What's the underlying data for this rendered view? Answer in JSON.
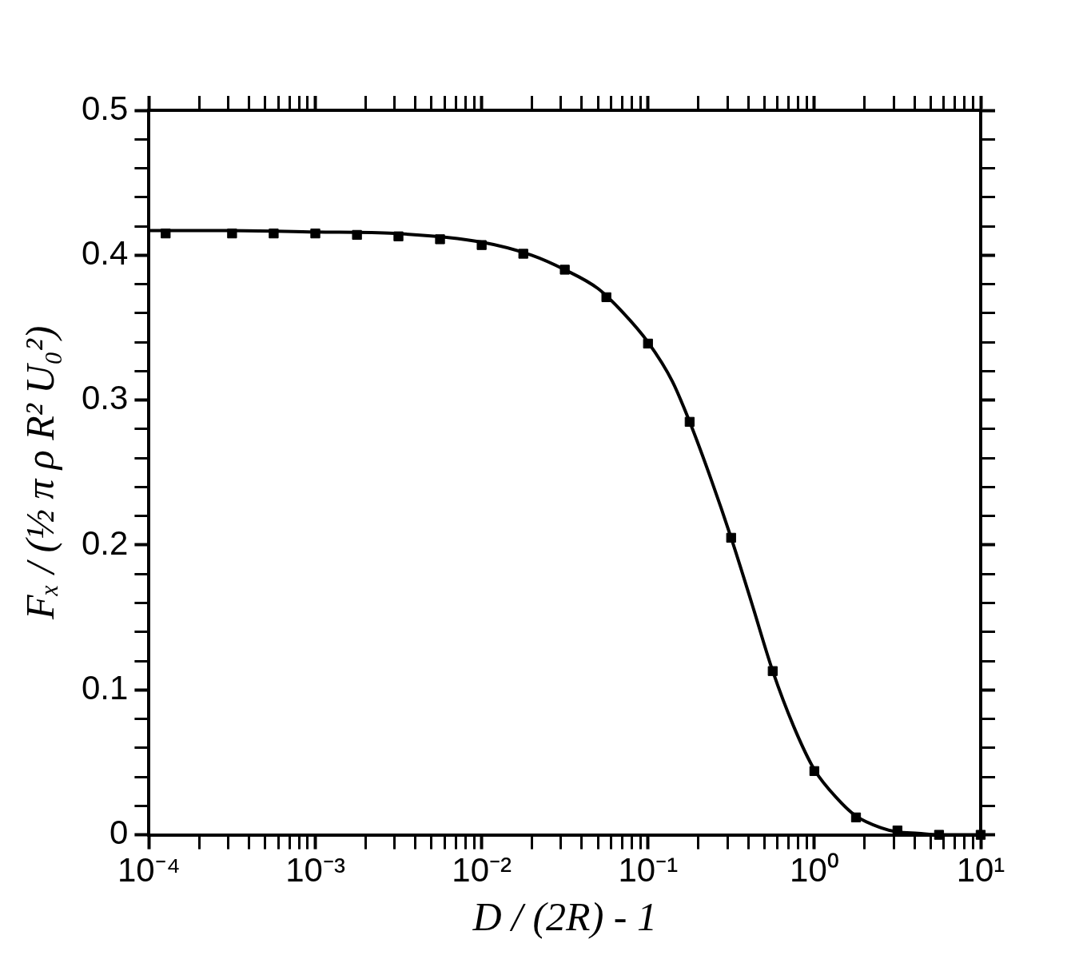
{
  "chart_data": {
    "type": "line",
    "xlabel": "D / (2R) - 1",
    "ylabel": "Fₓ / (½ π ρ R² U₀²)",
    "log": "x",
    "grid": false,
    "legend": false,
    "xlim": [
      0.0001,
      10
    ],
    "ylim": [
      0,
      0.5
    ],
    "xticks": [
      {
        "value": 0.0001,
        "label": "10⁻⁴"
      },
      {
        "value": 0.0002,
        "label": null
      },
      {
        "value": 0.0003,
        "label": null
      },
      {
        "value": 0.0004,
        "label": null
      },
      {
        "value": 0.0005,
        "label": null
      },
      {
        "value": 0.0006,
        "label": null
      },
      {
        "value": 0.0007,
        "label": null
      },
      {
        "value": 0.0008,
        "label": null
      },
      {
        "value": 0.0009,
        "label": null
      },
      {
        "value": 0.001,
        "label": "10⁻³"
      },
      {
        "value": 0.002,
        "label": null
      },
      {
        "value": 0.003,
        "label": null
      },
      {
        "value": 0.004,
        "label": null
      },
      {
        "value": 0.005,
        "label": null
      },
      {
        "value": 0.006,
        "label": null
      },
      {
        "value": 0.007,
        "label": null
      },
      {
        "value": 0.008,
        "label": null
      },
      {
        "value": 0.009,
        "label": null
      },
      {
        "value": 0.01,
        "label": "10⁻²"
      },
      {
        "value": 0.02,
        "label": null
      },
      {
        "value": 0.03,
        "label": null
      },
      {
        "value": 0.04,
        "label": null
      },
      {
        "value": 0.05,
        "label": null
      },
      {
        "value": 0.06,
        "label": null
      },
      {
        "value": 0.07,
        "label": null
      },
      {
        "value": 0.08,
        "label": null
      },
      {
        "value": 0.09,
        "label": null
      },
      {
        "value": 0.1,
        "label": "10⁻¹"
      },
      {
        "value": 0.2,
        "label": null
      },
      {
        "value": 0.3,
        "label": null
      },
      {
        "value": 0.4,
        "label": null
      },
      {
        "value": 0.5,
        "label": null
      },
      {
        "value": 0.6,
        "label": null
      },
      {
        "value": 0.7,
        "label": null
      },
      {
        "value": 0.8,
        "label": null
      },
      {
        "value": 0.9,
        "label": null
      },
      {
        "value": 1,
        "label": "10⁰"
      },
      {
        "value": 2,
        "label": null
      },
      {
        "value": 3,
        "label": null
      },
      {
        "value": 4,
        "label": null
      },
      {
        "value": 5,
        "label": null
      },
      {
        "value": 6,
        "label": null
      },
      {
        "value": 7,
        "label": null
      },
      {
        "value": 8,
        "label": null
      },
      {
        "value": 9,
        "label": null
      },
      {
        "value": 10,
        "label": "10¹"
      }
    ],
    "yticks": [
      0,
      {
        "value": 0.02,
        "label": null
      },
      {
        "value": 0.04,
        "label": null
      },
      {
        "value": 0.06,
        "label": null
      },
      {
        "value": 0.08,
        "label": null
      },
      0.1,
      {
        "value": 0.12,
        "label": null
      },
      {
        "value": 0.14,
        "label": null
      },
      {
        "value": 0.16,
        "label": null
      },
      {
        "value": 0.18,
        "label": null
      },
      0.2,
      {
        "value": 0.22,
        "label": null
      },
      {
        "value": 0.24,
        "label": null
      },
      {
        "value": 0.26,
        "label": null
      },
      {
        "value": 0.28,
        "label": null
      },
      0.3,
      {
        "value": 0.32,
        "label": null
      },
      {
        "value": 0.34,
        "label": null
      },
      {
        "value": 0.36,
        "label": null
      },
      {
        "value": 0.38,
        "label": null
      },
      0.4,
      {
        "value": 0.42,
        "label": null
      },
      {
        "value": 0.44,
        "label": null
      },
      {
        "value": 0.46,
        "label": null
      },
      {
        "value": 0.48,
        "label": null
      },
      0.5
    ],
    "series": [
      {
        "type": "line",
        "color": "#000000",
        "marker": "none",
        "line_style": "solid",
        "x": [
          0.0001,
          0.0003,
          0.001,
          0.003,
          0.01,
          0.02,
          0.0316,
          0.05,
          0.07,
          0.1,
          0.14,
          0.178,
          0.24,
          0.316,
          0.42,
          0.562,
          0.75,
          1,
          1.4,
          1.78,
          2.5,
          3.16,
          4.2,
          5.62,
          10
        ],
        "values": [
          0.417,
          0.417,
          0.416,
          0.415,
          0.409,
          0.4,
          0.39,
          0.377,
          0.361,
          0.34,
          0.313,
          0.285,
          0.245,
          0.205,
          0.16,
          0.113,
          0.075,
          0.045,
          0.024,
          0.013,
          0.005,
          0.002,
          0.001,
          0,
          0
        ]
      },
      {
        "type": "scatter",
        "color": "#000000",
        "marker": "square",
        "x": [
          0.000126,
          0.000316,
          0.000562,
          0.001,
          0.00178,
          0.00316,
          0.00562,
          0.01,
          0.0178,
          0.0316,
          0.0562,
          0.1,
          0.178,
          0.316,
          0.562,
          1,
          1.78,
          3.16,
          5.62,
          10
        ],
        "values": [
          0.415,
          0.415,
          0.415,
          0.415,
          0.414,
          0.413,
          0.411,
          0.407,
          0.401,
          0.39,
          0.371,
          0.339,
          0.285,
          0.205,
          0.113,
          0.044,
          0.012,
          0.003,
          0,
          0
        ]
      }
    ]
  }
}
